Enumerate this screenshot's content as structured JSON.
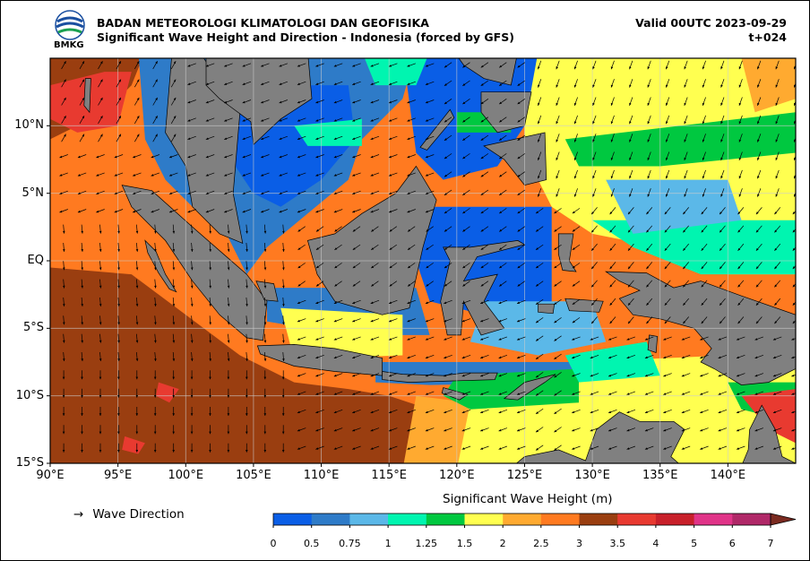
{
  "header": {
    "agency": "BADAN METEOROLOGI KLIMATOLOGI DAN GEOFISIKA",
    "product": "Significant Wave Height and Direction - Indonesia (forced by GFS)",
    "valid": "Valid 00UTC 2023-09-29",
    "lead": "t+024",
    "logo_text": "BMKG"
  },
  "axes": {
    "lon_labels": [
      "90°E",
      "95°E",
      "100°E",
      "105°E",
      "110°E",
      "115°E",
      "120°E",
      "125°E",
      "130°E",
      "135°E",
      "140°E"
    ],
    "lon_values": [
      90,
      95,
      100,
      105,
      110,
      115,
      120,
      125,
      130,
      135,
      140
    ],
    "lat_labels": [
      "10°N",
      "5°N",
      "EQ",
      "5°S",
      "10°S",
      "15°S"
    ],
    "lat_values": [
      10,
      5,
      0,
      -5,
      -10,
      -15
    ],
    "lon_range": [
      90,
      145
    ],
    "lat_range": [
      -15,
      15
    ]
  },
  "legend": {
    "arrow": "→",
    "direction_label": "Wave Direction",
    "colorbar_title": "Significant Wave Height (m)",
    "levels": [
      "0",
      "0.5",
      "0.75",
      "1",
      "1.25",
      "1.5",
      "2",
      "2.5",
      "3",
      "3.5",
      "4",
      "5",
      "6",
      "7"
    ],
    "colors": [
      "#0a5ee6",
      "#2e7bc8",
      "#5bb8e8",
      "#00f5b0",
      "#00c840",
      "#ffff50",
      "#ffaa30",
      "#ff7a20",
      "#9a3e10",
      "#e83a30",
      "#c8202a",
      "#e03488",
      "#b02868",
      "#7a2a20"
    ]
  },
  "map_colors": {
    "land": "#808080",
    "coast": "#000000"
  }
}
